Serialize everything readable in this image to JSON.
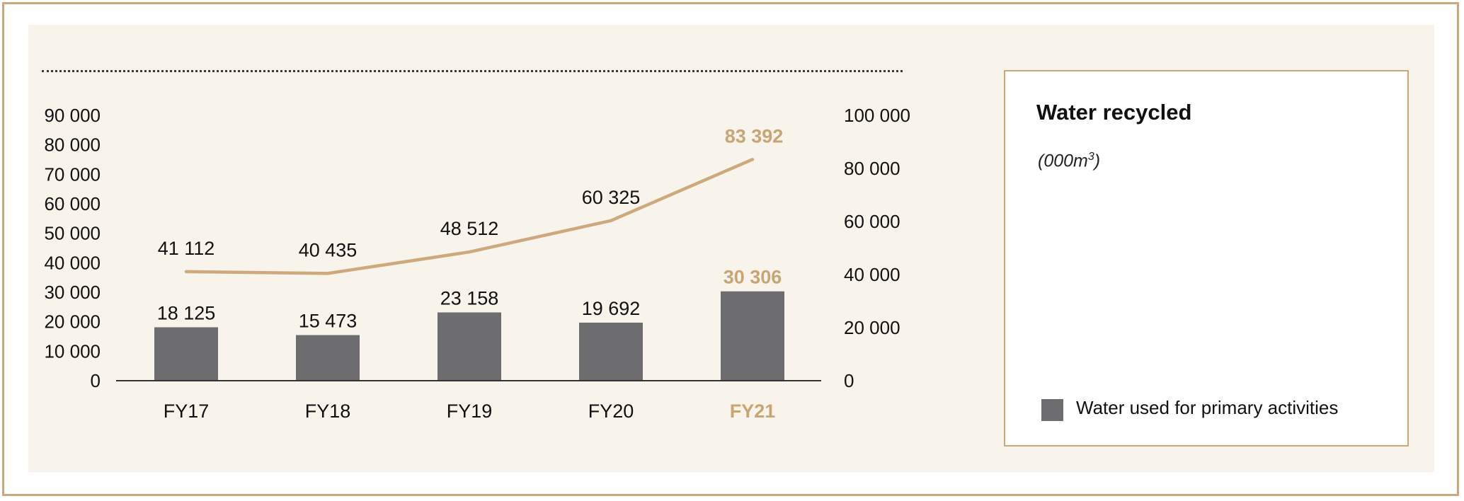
{
  "colors": {
    "bar": "#6d6d70",
    "line": "#cda97c",
    "highlight": "#c9a574",
    "text": "#111111",
    "axis": "#333333",
    "border": "#c9a978",
    "panel": "#f8f4ec"
  },
  "chart_data": {
    "type": "bar+line",
    "title": "Water recycled",
    "subtitle": "(000m³)",
    "categories": [
      "FY17",
      "FY18",
      "FY19",
      "FY20",
      "FY21"
    ],
    "highlight_category": "FY21",
    "y_left": {
      "ticks": [
        "0",
        "10 000",
        "20 000",
        "30 000",
        "40 000",
        "50 000",
        "60 000",
        "70 000",
        "80 000",
        "90 000"
      ],
      "ylim": [
        0,
        90000
      ]
    },
    "y_right": {
      "ticks": [
        "0",
        "20 000",
        "40 000",
        "60 000",
        "80 000",
        "100 000"
      ],
      "ylim": [
        0,
        100000
      ]
    },
    "series": [
      {
        "name": "Water used for primary activities",
        "kind": "bar",
        "axis": "left",
        "values": [
          18125,
          15473,
          23158,
          19692,
          30306
        ],
        "labels": [
          "18 125",
          "15 473",
          "23 158",
          "19 692",
          "30 306"
        ]
      },
      {
        "name": "",
        "kind": "line",
        "axis": "right",
        "values": [
          41112,
          40435,
          48512,
          60325,
          83392
        ],
        "labels": [
          "41 112",
          "40 435",
          "48 512",
          "60 325",
          "83 392"
        ]
      }
    ],
    "legend": {
      "placement": "right",
      "entries": [
        "Water used for primary activities"
      ]
    },
    "grid": false
  },
  "legend_panel": {
    "title": "Water recycled",
    "unit_prefix": "(000m",
    "unit_sup": "3",
    "unit_suffix": ")",
    "entry": "Water used for primary activities"
  }
}
